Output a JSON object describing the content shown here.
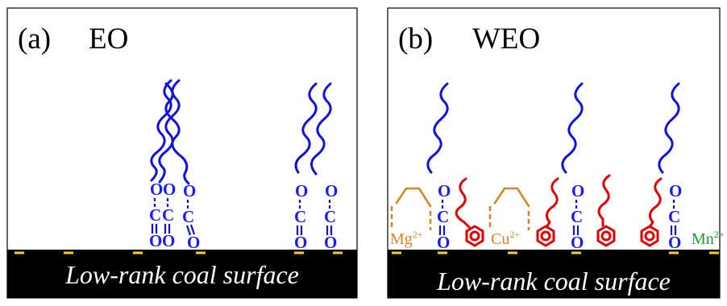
{
  "panels": [
    {
      "label": "(a)",
      "name": "EO",
      "surface_text": "Low-rank coal surface"
    },
    {
      "label": "(b)",
      "name": "WEO",
      "surface_text": "Low-rank coal surface"
    }
  ],
  "ester_atoms": {
    "o": "O",
    "c": "C"
  },
  "ions": [
    {
      "symbol": "Mg",
      "charge": "2+",
      "color": "#d4862a"
    },
    {
      "symbol": "Cu",
      "charge": "2+",
      "color": "#d4862a"
    },
    {
      "symbol": "Mn",
      "charge": "2+",
      "color": "#1f9e2b"
    }
  ],
  "colors": {
    "alkyl_chain": "#1010e0",
    "aromatic_molecule": "#e00000",
    "charge_marker": "#ffd400",
    "surface": "#000000"
  }
}
